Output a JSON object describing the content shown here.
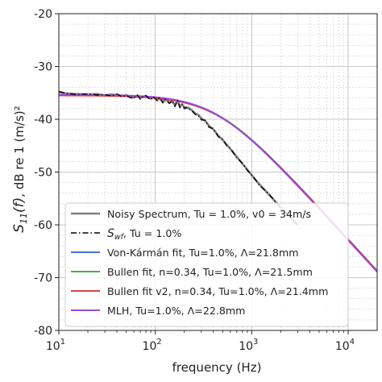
{
  "chart_data": {
    "type": "line",
    "xscale": "log",
    "xlim": [
      10,
      20000
    ],
    "ylim": [
      -80,
      -20
    ],
    "xlabel": "frequency (Hz)",
    "ylabel_main": "S",
    "ylabel_sub": "11",
    "ylabel_arg": "(f)",
    "ylabel_rest": ", dB re 1 (m/s)²",
    "grid": true,
    "legend_position": "lower-center",
    "x_ticks": [
      {
        "value": 10,
        "base": "10",
        "exp": "1"
      },
      {
        "value": 100,
        "base": "10",
        "exp": "2"
      },
      {
        "value": 1000,
        "base": "10",
        "exp": "3"
      },
      {
        "value": 10000,
        "base": "10",
        "exp": "4"
      }
    ],
    "y_ticks": [
      {
        "value": -20,
        "label": "-20"
      },
      {
        "value": -30,
        "label": "-30"
      },
      {
        "value": -40,
        "label": "-40"
      },
      {
        "value": -50,
        "label": "-50"
      },
      {
        "value": -60,
        "label": "-60"
      },
      {
        "value": -70,
        "label": "-70"
      },
      {
        "value": -80,
        "label": "-80"
      }
    ],
    "series": [
      {
        "name": "Noisy Spectrum, Tu = 1.0%, v0 = 34m/s",
        "color": "#808080",
        "style": "solid",
        "width": 2.6,
        "x": [
          10,
          12,
          15,
          20,
          25,
          30,
          35,
          40,
          45,
          50,
          55,
          60,
          65,
          70,
          75,
          80,
          85,
          90,
          95,
          100,
          105,
          110,
          115,
          120,
          130,
          140,
          150,
          160,
          170,
          180,
          190,
          200,
          210,
          220,
          240,
          260,
          280,
          300,
          330,
          360,
          400,
          450,
          500,
          550,
          600,
          700,
          800,
          900,
          1000,
          1200,
          1500,
          2000,
          2500,
          3000
        ],
        "y": [
          -34.9,
          -35.1,
          -35.2,
          -35.3,
          -35.2,
          -35.5,
          -35.3,
          -35.4,
          -35.6,
          -35.4,
          -35.8,
          -35.9,
          -35.5,
          -36.0,
          -35.7,
          -35.6,
          -35.9,
          -36.1,
          -35.8,
          -36.0,
          -36.4,
          -36.0,
          -36.3,
          -36.6,
          -36.3,
          -36.8,
          -36.6,
          -37.3,
          -36.5,
          -37.5,
          -37.2,
          -37.7,
          -37.9,
          -37.8,
          -38.3,
          -38.9,
          -39.2,
          -39.8,
          -40.3,
          -41.2,
          -41.9,
          -43.1,
          -43.9,
          -44.8,
          -45.6,
          -47.1,
          -48.4,
          -49.5,
          -50.6,
          -52.3,
          -54.2,
          -56.7,
          -58.5,
          -60.0
        ]
      },
      {
        "name": "S",
        "name_sub": "wf",
        "name_rest": ", Tu = 1.0%",
        "color": "#000000",
        "style": "dashdot",
        "width": 1.4,
        "x": [
          10,
          12,
          15,
          20,
          25,
          30,
          35,
          40,
          45,
          50,
          55,
          60,
          65,
          70,
          75,
          80,
          85,
          90,
          95,
          100,
          105,
          110,
          115,
          120,
          125,
          130,
          140,
          150,
          160,
          170,
          180,
          190,
          200,
          210,
          220,
          240,
          260,
          280,
          300,
          330,
          360,
          400,
          450,
          500,
          550,
          600,
          700,
          800,
          900,
          1000,
          1200,
          1500,
          2000,
          2500,
          3000
        ],
        "y": [
          -34.7,
          -35.1,
          -35.3,
          -35.2,
          -35.4,
          -35.3,
          -35.6,
          -35.2,
          -35.7,
          -35.5,
          -35.9,
          -36.0,
          -35.4,
          -36.2,
          -35.6,
          -35.5,
          -36.0,
          -36.3,
          -35.7,
          -36.1,
          -36.5,
          -35.9,
          -36.4,
          -36.9,
          -36.2,
          -36.4,
          -37.0,
          -36.5,
          -37.6,
          -36.4,
          -37.8,
          -37.1,
          -38.0,
          -37.7,
          -38.0,
          -38.4,
          -39.1,
          -39.3,
          -40.1,
          -40.2,
          -41.5,
          -41.8,
          -43.3,
          -43.8,
          -45.0,
          -45.5,
          -47.3,
          -48.3,
          -49.7,
          -50.5,
          -52.5,
          -54.1,
          -56.9,
          -58.4,
          -60.1
        ]
      },
      {
        "name": "Von-Kármán fit, Tu=1.0%, Λ=21.8mm",
        "color": "#2a5bd7",
        "style": "solid",
        "width": 1.6,
        "model": "vk",
        "y0": -35.4,
        "fc": 430,
        "n": 0.3333,
        "pow": 1.65
      },
      {
        "name": "Bullen fit, n=0.34, Tu=1.0%, Λ=21.5mm",
        "color": "#2ca02c",
        "style": "solid",
        "width": 1.6,
        "model": "vk",
        "y0": -35.45,
        "fc": 435,
        "n": 0.34,
        "pow": 1.65
      },
      {
        "name": "Bullen fit v2, n=0.34, Tu=1.0%, Λ=21.4mm",
        "color": "#d62728",
        "style": "solid",
        "width": 1.6,
        "model": "vk",
        "y0": -35.5,
        "fc": 438,
        "n": 0.34,
        "pow": 1.6
      },
      {
        "name": "MLH, Tu=1.0%, Λ=22.8mm",
        "color": "#9b4dd6",
        "style": "solid",
        "width": 2.0,
        "model": "vk",
        "y0": -35.35,
        "fc": 420,
        "n": 0.3333,
        "pow": 1.65
      }
    ]
  }
}
